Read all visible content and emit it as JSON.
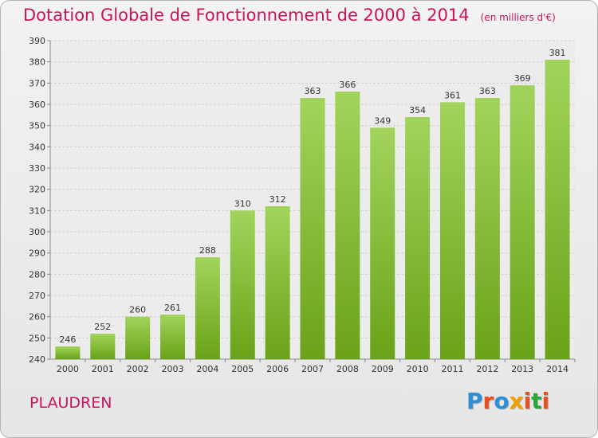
{
  "title": "Dotation Globale de Fonctionnement de 2000 à 2014",
  "unit_note": "(en milliers d'€)",
  "place": "PLAUDREN",
  "logo": {
    "text": "Proxiti",
    "colors": [
      "#2e8fd6",
      "#e8501e",
      "#2e8fd6",
      "#f0a000",
      "#e8501e",
      "#28a83c",
      "#e8501e"
    ]
  },
  "colors": {
    "bar_light": "#a2d45c",
    "bar_dark": "#6aa218",
    "text_accent": "#c8145a",
    "grid": "#d0d0d0"
  },
  "chart_data": {
    "type": "bar",
    "categories": [
      "2000",
      "2001",
      "2002",
      "2003",
      "2004",
      "2005",
      "2006",
      "2007",
      "2008",
      "2009",
      "2010",
      "2011",
      "2012",
      "2013",
      "2014"
    ],
    "values": [
      246,
      252,
      260,
      261,
      288,
      310,
      312,
      363,
      366,
      349,
      354,
      361,
      363,
      369,
      381
    ],
    "ylim": [
      240,
      390
    ],
    "yticks": [
      240,
      250,
      260,
      270,
      280,
      290,
      300,
      310,
      320,
      330,
      340,
      350,
      360,
      370,
      380,
      390
    ],
    "grid": true,
    "data_labels": true
  }
}
